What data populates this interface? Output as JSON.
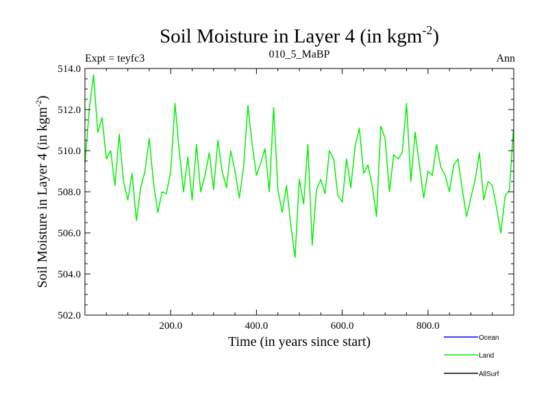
{
  "chart_data": {
    "type": "line",
    "title": "Soil Moisture in Layer 4 (in kgm",
    "title_sup": "-2",
    "title_end": ")",
    "subtitle_left": "Expt = teyfc3",
    "subtitle_center": "010_5_MaBP",
    "subtitle_right": "Ann",
    "xlabel": "Time (in years since start)",
    "ylabel": "Soil Moisture in Layer 4 (in kgm",
    "ylabel_sup": "-2",
    "ylabel_end": ")",
    "xlim": [
      0,
      1000
    ],
    "ylim": [
      502,
      514
    ],
    "xticks": [
      200,
      400,
      600,
      800
    ],
    "xtick_labels": [
      "200.0",
      "400.0",
      "600.0",
      "800.0"
    ],
    "yticks": [
      502,
      504,
      506,
      508,
      510,
      512,
      514
    ],
    "ytick_labels": [
      "502.0",
      "504.0",
      "506.0",
      "508.0",
      "510.0",
      "512.0",
      "514.0"
    ],
    "series": [
      {
        "name": "Land",
        "color": "#00ee00",
        "x": [
          0,
          10,
          20,
          30,
          40,
          50,
          60,
          70,
          80,
          90,
          100,
          110,
          120,
          130,
          140,
          150,
          160,
          170,
          180,
          190,
          200,
          210,
          220,
          230,
          240,
          250,
          260,
          270,
          280,
          290,
          300,
          310,
          320,
          330,
          340,
          350,
          360,
          370,
          380,
          390,
          400,
          410,
          420,
          430,
          440,
          450,
          460,
          470,
          480,
          490,
          500,
          510,
          520,
          530,
          540,
          550,
          560,
          570,
          580,
          590,
          600,
          610,
          620,
          630,
          640,
          650,
          660,
          670,
          680,
          690,
          700,
          710,
          720,
          730,
          740,
          750,
          760,
          770,
          780,
          790,
          800,
          810,
          820,
          830,
          840,
          850,
          860,
          870,
          880,
          890,
          900,
          910,
          920,
          930,
          940,
          950,
          960,
          970,
          980,
          990,
          999
        ],
        "values": [
          509.4,
          512.0,
          513.7,
          510.9,
          511.6,
          509.6,
          510.0,
          508.3,
          510.8,
          508.5,
          507.6,
          508.9,
          506.6,
          508.2,
          509.0,
          510.6,
          508.4,
          507.0,
          508.0,
          507.9,
          509.0,
          512.3,
          510.0,
          508.0,
          509.7,
          507.6,
          510.3,
          508.0,
          508.8,
          509.9,
          508.1,
          510.5,
          509.0,
          508.2,
          510.0,
          509.0,
          507.7,
          509.2,
          512.2,
          510.3,
          508.8,
          509.4,
          510.1,
          508.0,
          512.1,
          508.1,
          507.0,
          508.3,
          506.4,
          504.8,
          508.6,
          507.4,
          510.3,
          505.4,
          508.1,
          508.6,
          507.9,
          510.0,
          509.6,
          507.8,
          507.5,
          509.6,
          508.2,
          510.2,
          511.1,
          508.9,
          509.3,
          508.3,
          506.8,
          511.2,
          510.6,
          508.0,
          509.8,
          509.6,
          509.9,
          512.3,
          508.5,
          510.9,
          509.3,
          507.7,
          509.0,
          508.8,
          510.3,
          509.2,
          508.8,
          508.0,
          509.3,
          509.6,
          508.1,
          506.8,
          507.7,
          508.6,
          509.9,
          507.6,
          508.5,
          508.3,
          507.2,
          506.0,
          507.8,
          508.1,
          511.0
        ]
      }
    ],
    "legend": [
      {
        "name": "Ocean",
        "color": "#0000ff"
      },
      {
        "name": "Land",
        "color": "#00ee00"
      },
      {
        "name": "AllSurf",
        "color": "#000000"
      }
    ]
  }
}
